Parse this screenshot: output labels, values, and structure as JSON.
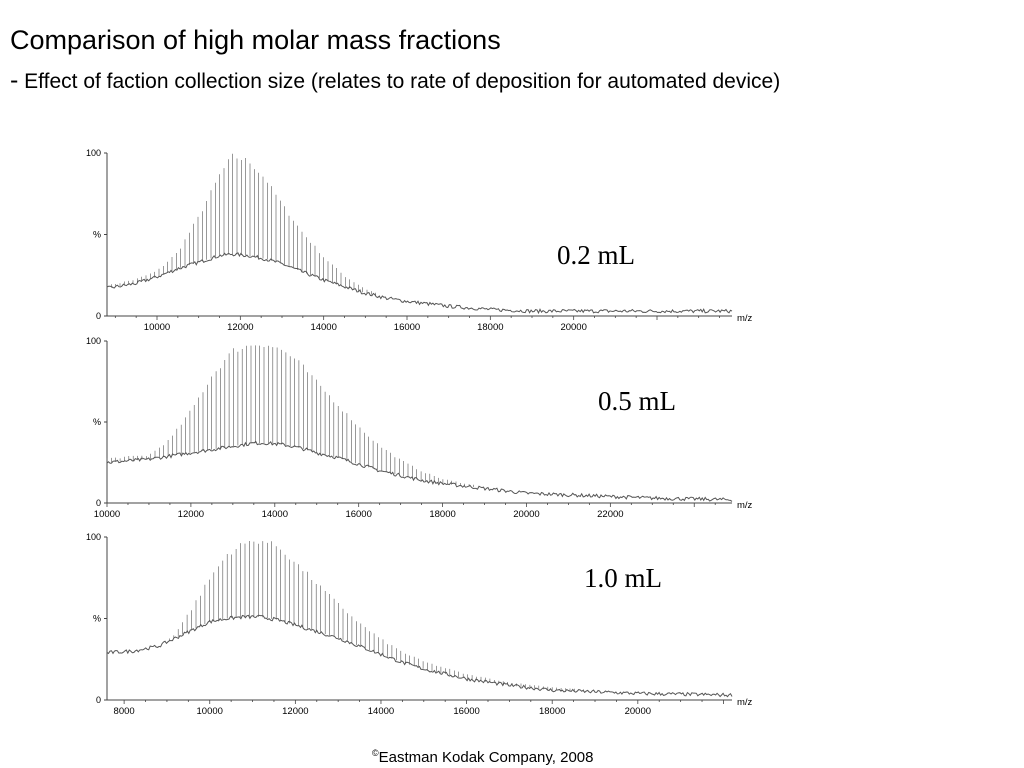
{
  "slide": {
    "title": "Comparison of high molar mass fractions",
    "subtitle_dash": "-",
    "subtitle": "Effect of faction collection size (relates to rate of deposition for automated device)",
    "copyright_symbol": "©",
    "copyright": "Eastman Kodak Company, 2008"
  },
  "colors": {
    "trace": "#555555",
    "axis": "#444444",
    "text": "#000000"
  },
  "chart_data": [
    {
      "type": "line",
      "label": "0.2 mL",
      "xlabel": "m/z",
      "ylabel": "%",
      "xlim": [
        8800,
        23800
      ],
      "ylim": [
        0,
        100
      ],
      "xticks": [
        10000,
        12000,
        14000,
        16000,
        18000,
        20000
      ],
      "yticks": [
        0,
        100
      ],
      "ytick_labels": [
        "0",
        "%",
        "100"
      ],
      "series": [
        {
          "role": "envelope-max",
          "x": [
            8800,
            9500,
            10000,
            10500,
            11000,
            11500,
            11800,
            12200,
            12600,
            13000,
            13500,
            14000,
            14500,
            15000,
            15500,
            16000,
            17000,
            18000,
            19000,
            20000,
            21000,
            22000,
            23800
          ],
          "y": [
            19,
            23,
            28,
            40,
            62,
            88,
            100,
            97,
            86,
            70,
            52,
            37,
            25,
            17,
            12,
            9,
            7,
            5,
            4,
            3,
            3,
            3,
            3
          ]
        },
        {
          "role": "envelope-baseline",
          "x": [
            8800,
            9500,
            10000,
            10500,
            11000,
            11500,
            11800,
            12200,
            12600,
            13000,
            13500,
            14000,
            14500,
            15000,
            15500,
            16000,
            17000,
            18000,
            19000,
            20000,
            21000,
            22000,
            23800
          ],
          "y": [
            17,
            20,
            24,
            29,
            33,
            37,
            38,
            37,
            35,
            32,
            27,
            22,
            18,
            14,
            11,
            9,
            6,
            4,
            3,
            3,
            3,
            3,
            3
          ]
        }
      ]
    },
    {
      "type": "line",
      "label": "0.5 mL",
      "xlabel": "m/z",
      "ylabel": "%",
      "xlim": [
        10000,
        24900
      ],
      "ylim": [
        0,
        100
      ],
      "xticks": [
        10000,
        12000,
        14000,
        16000,
        18000,
        20000,
        22000
      ],
      "yticks": [
        0,
        100
      ],
      "ytick_labels": [
        "0",
        "%",
        "100"
      ],
      "series": [
        {
          "role": "envelope-max",
          "x": [
            10000,
            11000,
            11500,
            12000,
            12500,
            13000,
            13500,
            13800,
            14200,
            14600,
            15000,
            15500,
            16000,
            16500,
            17000,
            17500,
            18000,
            19000,
            20000,
            21000,
            22000,
            23000,
            24900
          ],
          "y": [
            28,
            30,
            40,
            58,
            80,
            96,
            100,
            100,
            96,
            88,
            76,
            62,
            48,
            36,
            27,
            20,
            15,
            10,
            7,
            5,
            4,
            3,
            2
          ]
        },
        {
          "role": "envelope-baseline",
          "x": [
            10000,
            11000,
            11500,
            12000,
            12500,
            13000,
            13500,
            13800,
            14200,
            14600,
            15000,
            15500,
            16000,
            16500,
            17000,
            17500,
            18000,
            19000,
            20000,
            21000,
            22000,
            23000,
            24900
          ],
          "y": [
            25,
            27,
            29,
            31,
            33,
            35,
            37,
            37,
            36,
            34,
            31,
            28,
            24,
            20,
            17,
            14,
            12,
            9,
            6,
            5,
            4,
            3,
            2
          ]
        }
      ]
    },
    {
      "type": "line",
      "label": "1.0 mL",
      "xlabel": "m/z",
      "ylabel": "%",
      "xlim": [
        7600,
        22200
      ],
      "ylim": [
        0,
        100
      ],
      "xticks": [
        8000,
        10000,
        12000,
        14000,
        16000,
        18000,
        20000
      ],
      "yticks": [
        0,
        100
      ],
      "ytick_labels": [
        "0",
        "%",
        "100"
      ],
      "series": [
        {
          "role": "envelope-max",
          "x": [
            7600,
            8200,
            8800,
            9200,
            9600,
            10000,
            10400,
            10800,
            11200,
            11600,
            12000,
            12500,
            13000,
            13500,
            14000,
            14500,
            15000,
            16000,
            17000,
            18000,
            19000,
            20000,
            22200
          ],
          "y": [
            30,
            30,
            33,
            42,
            58,
            76,
            91,
            98,
            100,
            96,
            86,
            73,
            60,
            48,
            38,
            30,
            24,
            16,
            11,
            8,
            6,
            4,
            3
          ]
        },
        {
          "role": "envelope-baseline",
          "x": [
            7600,
            8200,
            8800,
            9200,
            9600,
            10000,
            10400,
            10800,
            11200,
            11600,
            12000,
            12500,
            13000,
            13500,
            14000,
            14500,
            15000,
            16000,
            17000,
            18000,
            19000,
            20000,
            22200
          ],
          "y": [
            29,
            30,
            33,
            38,
            43,
            48,
            50,
            51,
            51,
            49,
            46,
            42,
            38,
            33,
            28,
            23,
            19,
            13,
            9,
            6,
            5,
            4,
            3
          ]
        }
      ]
    }
  ]
}
